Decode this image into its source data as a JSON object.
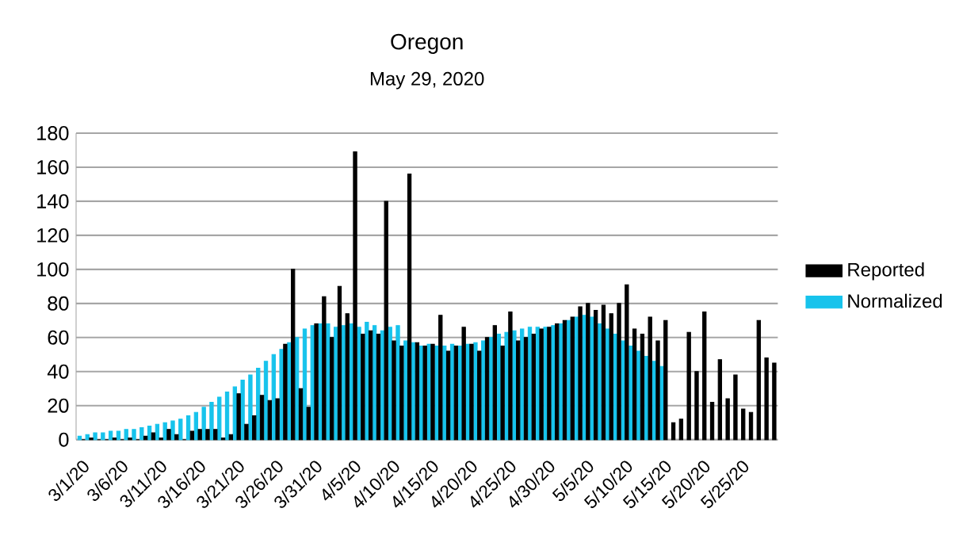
{
  "chart_data": {
    "type": "bar",
    "title": "Oregon",
    "subtitle": "May 29, 2020",
    "categories": [
      "3/1/20",
      null,
      null,
      null,
      null,
      "3/6/20",
      null,
      null,
      null,
      null,
      "3/11/20",
      null,
      null,
      null,
      null,
      "3/16/20",
      null,
      null,
      null,
      null,
      "3/21/20",
      null,
      null,
      null,
      null,
      "3/26/20",
      null,
      null,
      null,
      null,
      "3/31/20",
      null,
      null,
      null,
      null,
      "4/5/20",
      null,
      null,
      null,
      null,
      "4/10/20",
      null,
      null,
      null,
      null,
      "4/15/20",
      null,
      null,
      null,
      null,
      "4/20/20",
      null,
      null,
      null,
      null,
      "4/25/20",
      null,
      null,
      null,
      null,
      "4/30/20",
      null,
      null,
      null,
      null,
      "5/5/20",
      null,
      null,
      null,
      null,
      "5/10/20",
      null,
      null,
      null,
      null,
      "5/15/20",
      null,
      null,
      null,
      null,
      "5/20/20",
      null,
      null,
      null,
      null,
      "5/25/20",
      null,
      null,
      null,
      null
    ],
    "series": [
      {
        "name": "Reported",
        "color": "#000000",
        "values": [
          0,
          1,
          0,
          0,
          1,
          0,
          1,
          0,
          2,
          4,
          1,
          6,
          3,
          0,
          5,
          6,
          6,
          6,
          1,
          3,
          27,
          9,
          14,
          26,
          23,
          24,
          56,
          100,
          30,
          19,
          68,
          84,
          60,
          90,
          74,
          169,
          62,
          64,
          62,
          140,
          58,
          55,
          156,
          57,
          55,
          56,
          73,
          52,
          55,
          66,
          56,
          52,
          60,
          67,
          55,
          75,
          58,
          60,
          62,
          65,
          66,
          68,
          70,
          72,
          78,
          80,
          76,
          79,
          74,
          80,
          91,
          65,
          62,
          72,
          58,
          70,
          10,
          12,
          63,
          40,
          75,
          22,
          47,
          24,
          38,
          18,
          16,
          70,
          48,
          45
        ]
      },
      {
        "name": "Normalized",
        "color": "#17c3ec",
        "values": [
          2,
          3,
          4,
          4,
          5,
          5,
          6,
          6,
          7,
          8,
          9,
          10,
          11,
          12,
          14,
          16,
          19,
          22,
          25,
          28,
          31,
          35,
          38,
          42,
          46,
          50,
          53,
          57,
          60,
          65,
          67,
          68,
          68,
          66,
          67,
          68,
          66,
          69,
          67,
          64,
          66,
          67,
          58,
          57,
          55,
          56,
          55,
          55,
          56,
          55,
          56,
          57,
          58,
          60,
          62,
          63,
          64,
          65,
          66,
          66,
          66,
          67,
          68,
          70,
          72,
          73,
          72,
          68,
          65,
          62,
          58,
          55,
          52,
          49,
          46,
          43,
          null,
          null,
          null,
          null,
          null,
          null,
          null,
          null,
          null,
          null,
          null,
          null,
          null,
          null
        ]
      }
    ],
    "ylim": [
      0,
      180
    ],
    "yticks": [
      0,
      20,
      40,
      60,
      80,
      100,
      120,
      140,
      160,
      180
    ],
    "grid": "y",
    "legend": "right"
  }
}
